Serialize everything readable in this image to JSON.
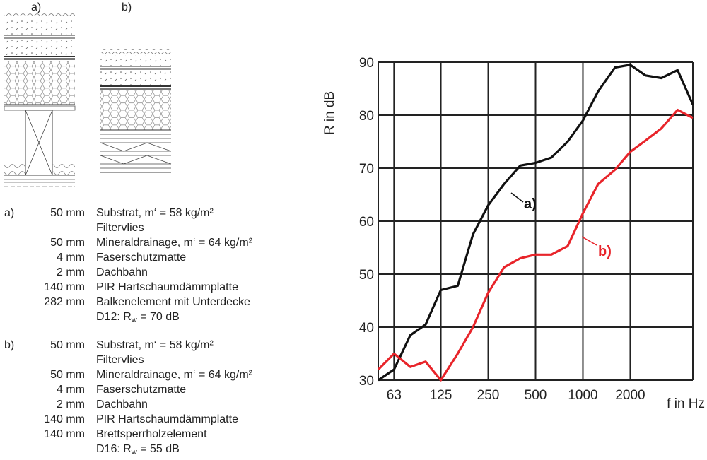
{
  "panel_labels": {
    "a": "a)",
    "b": "b)"
  },
  "spec_a": {
    "key": "a)",
    "layers": [
      {
        "thickness": "50 mm",
        "text": "Substrat, m‘ = 58 kg/m²"
      },
      {
        "thickness": "",
        "text": "Filtervlies"
      },
      {
        "thickness": "50 mm",
        "text": "Mineraldrainage, m‘ = 64 kg/m²"
      },
      {
        "thickness": "4 mm",
        "text": "Faserschutzmatte"
      },
      {
        "thickness": "2 mm",
        "text": "Dachbahn"
      },
      {
        "thickness": "140 mm",
        "text": "PIR Hartschaumdämmplatte"
      },
      {
        "thickness": "282 mm",
        "text": "Balkenelement mit Unterdecke"
      }
    ],
    "rating_prefix": "D12: R",
    "rating_sub": "w",
    "rating_suffix": " = 70 dB"
  },
  "spec_b": {
    "key": "b)",
    "layers": [
      {
        "thickness": "50 mm",
        "text": "Substrat, m‘ = 58 kg/m²"
      },
      {
        "thickness": "",
        "text": "Filtervlies"
      },
      {
        "thickness": "50 mm",
        "text": "Mineraldrainage, m‘ = 64 kg/m²"
      },
      {
        "thickness": "4 mm",
        "text": "Faserschutzmatte"
      },
      {
        "thickness": "2 mm",
        "text": "Dachbahn"
      },
      {
        "thickness": "140 mm",
        "text": "PIR Hartschaumdämmplatte"
      },
      {
        "thickness": "140 mm",
        "text": "Brettsperrholzelement"
      }
    ],
    "rating_prefix": "D16: R",
    "rating_sub": "w",
    "rating_suffix": " = 55 dB"
  },
  "chart_data": {
    "type": "line",
    "title": "",
    "xlabel": "f in Hz",
    "ylabel": "R in dB",
    "xscale": "log (third-octave bands)",
    "x": [
      50,
      63,
      80,
      100,
      125,
      160,
      200,
      250,
      315,
      400,
      500,
      630,
      800,
      1000,
      1250,
      1600,
      2000,
      2500,
      3150,
      4000,
      5000
    ],
    "x_ticks": [
      63,
      125,
      250,
      500,
      1000,
      2000
    ],
    "x_tick_labels": [
      "63",
      "125",
      "250",
      "500",
      "1000",
      "2000"
    ],
    "ylim": [
      30,
      90
    ],
    "y_ticks": [
      30,
      40,
      50,
      60,
      70,
      80,
      90
    ],
    "grid": true,
    "series": [
      {
        "name": "a)",
        "color": "#111111",
        "values": [
          30,
          32,
          38.5,
          40.5,
          47,
          47.8,
          57.5,
          63,
          67,
          70.5,
          71,
          72,
          75,
          79,
          84.5,
          89,
          89.5,
          87.5,
          87,
          88.5,
          82
        ]
      },
      {
        "name": "b)",
        "color": "#e8242a",
        "values": [
          32,
          35,
          32.5,
          33.5,
          30,
          35,
          40,
          46.5,
          51.3,
          53,
          53.7,
          53.7,
          55.3,
          61.5,
          67,
          69.7,
          73.1,
          75.2,
          77.5,
          81,
          79.5
        ]
      }
    ]
  }
}
